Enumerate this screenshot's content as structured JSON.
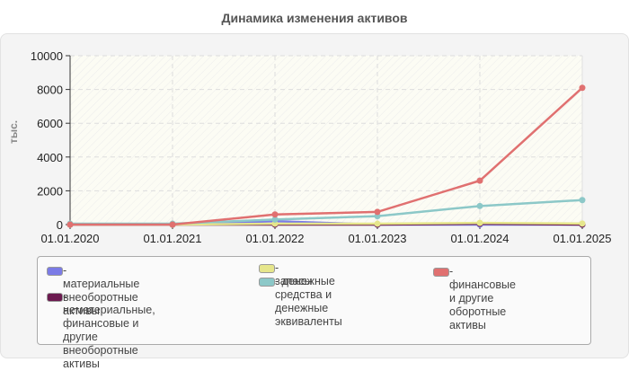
{
  "title": "Динамика изменения активов",
  "y_axis_label": "тыс.",
  "chart_data": {
    "type": "line",
    "title": "Динамика изменения активов",
    "xlabel": "",
    "ylabel": "тыс.",
    "ylim": [
      0,
      10000
    ],
    "yticks": [
      0,
      2000,
      4000,
      6000,
      8000,
      10000
    ],
    "grid": true,
    "legend_position": "bottom",
    "categories": [
      "01.01.2020",
      "01.01.2021",
      "01.01.2022",
      "01.01.2023",
      "01.01.2024",
      "01.01.2025"
    ],
    "series": [
      {
        "name": "материальные внеоборотные активы",
        "color": "#7b7be6",
        "values": [
          0,
          0,
          200,
          0,
          0,
          0
        ]
      },
      {
        "name": "нематериальные, финансовые и другие внеоборотные активы",
        "color": "#6b1a4f",
        "values": [
          0,
          0,
          0,
          0,
          50,
          0
        ]
      },
      {
        "name": "запасы",
        "color": "#e6e68c",
        "values": [
          0,
          0,
          50,
          50,
          100,
          60
        ]
      },
      {
        "name": "денежные средства и денежные эквиваленты",
        "color": "#8cc8c8",
        "values": [
          50,
          50,
          300,
          500,
          1100,
          1450
        ]
      },
      {
        "name": "финансовые и другие оборотные активы",
        "color": "#e07070",
        "values": [
          0,
          0,
          600,
          750,
          2600,
          8100
        ]
      }
    ]
  },
  "legend": {
    "items": [
      {
        "label": "- материальные внеоборотные\nактивы",
        "color": "#7b7be6"
      },
      {
        "label": "- нематериальные,\nфинансовые и другие\nвнеоборотные активы",
        "color": "#6b1a4f"
      },
      {
        "label": "- запасы",
        "color": "#e6e68c"
      },
      {
        "label": "- денежные средства и\nденежные эквиваленты",
        "color": "#8cc8c8"
      },
      {
        "label": "- финансовые и другие\nоборотные активы",
        "color": "#e07070"
      }
    ]
  }
}
